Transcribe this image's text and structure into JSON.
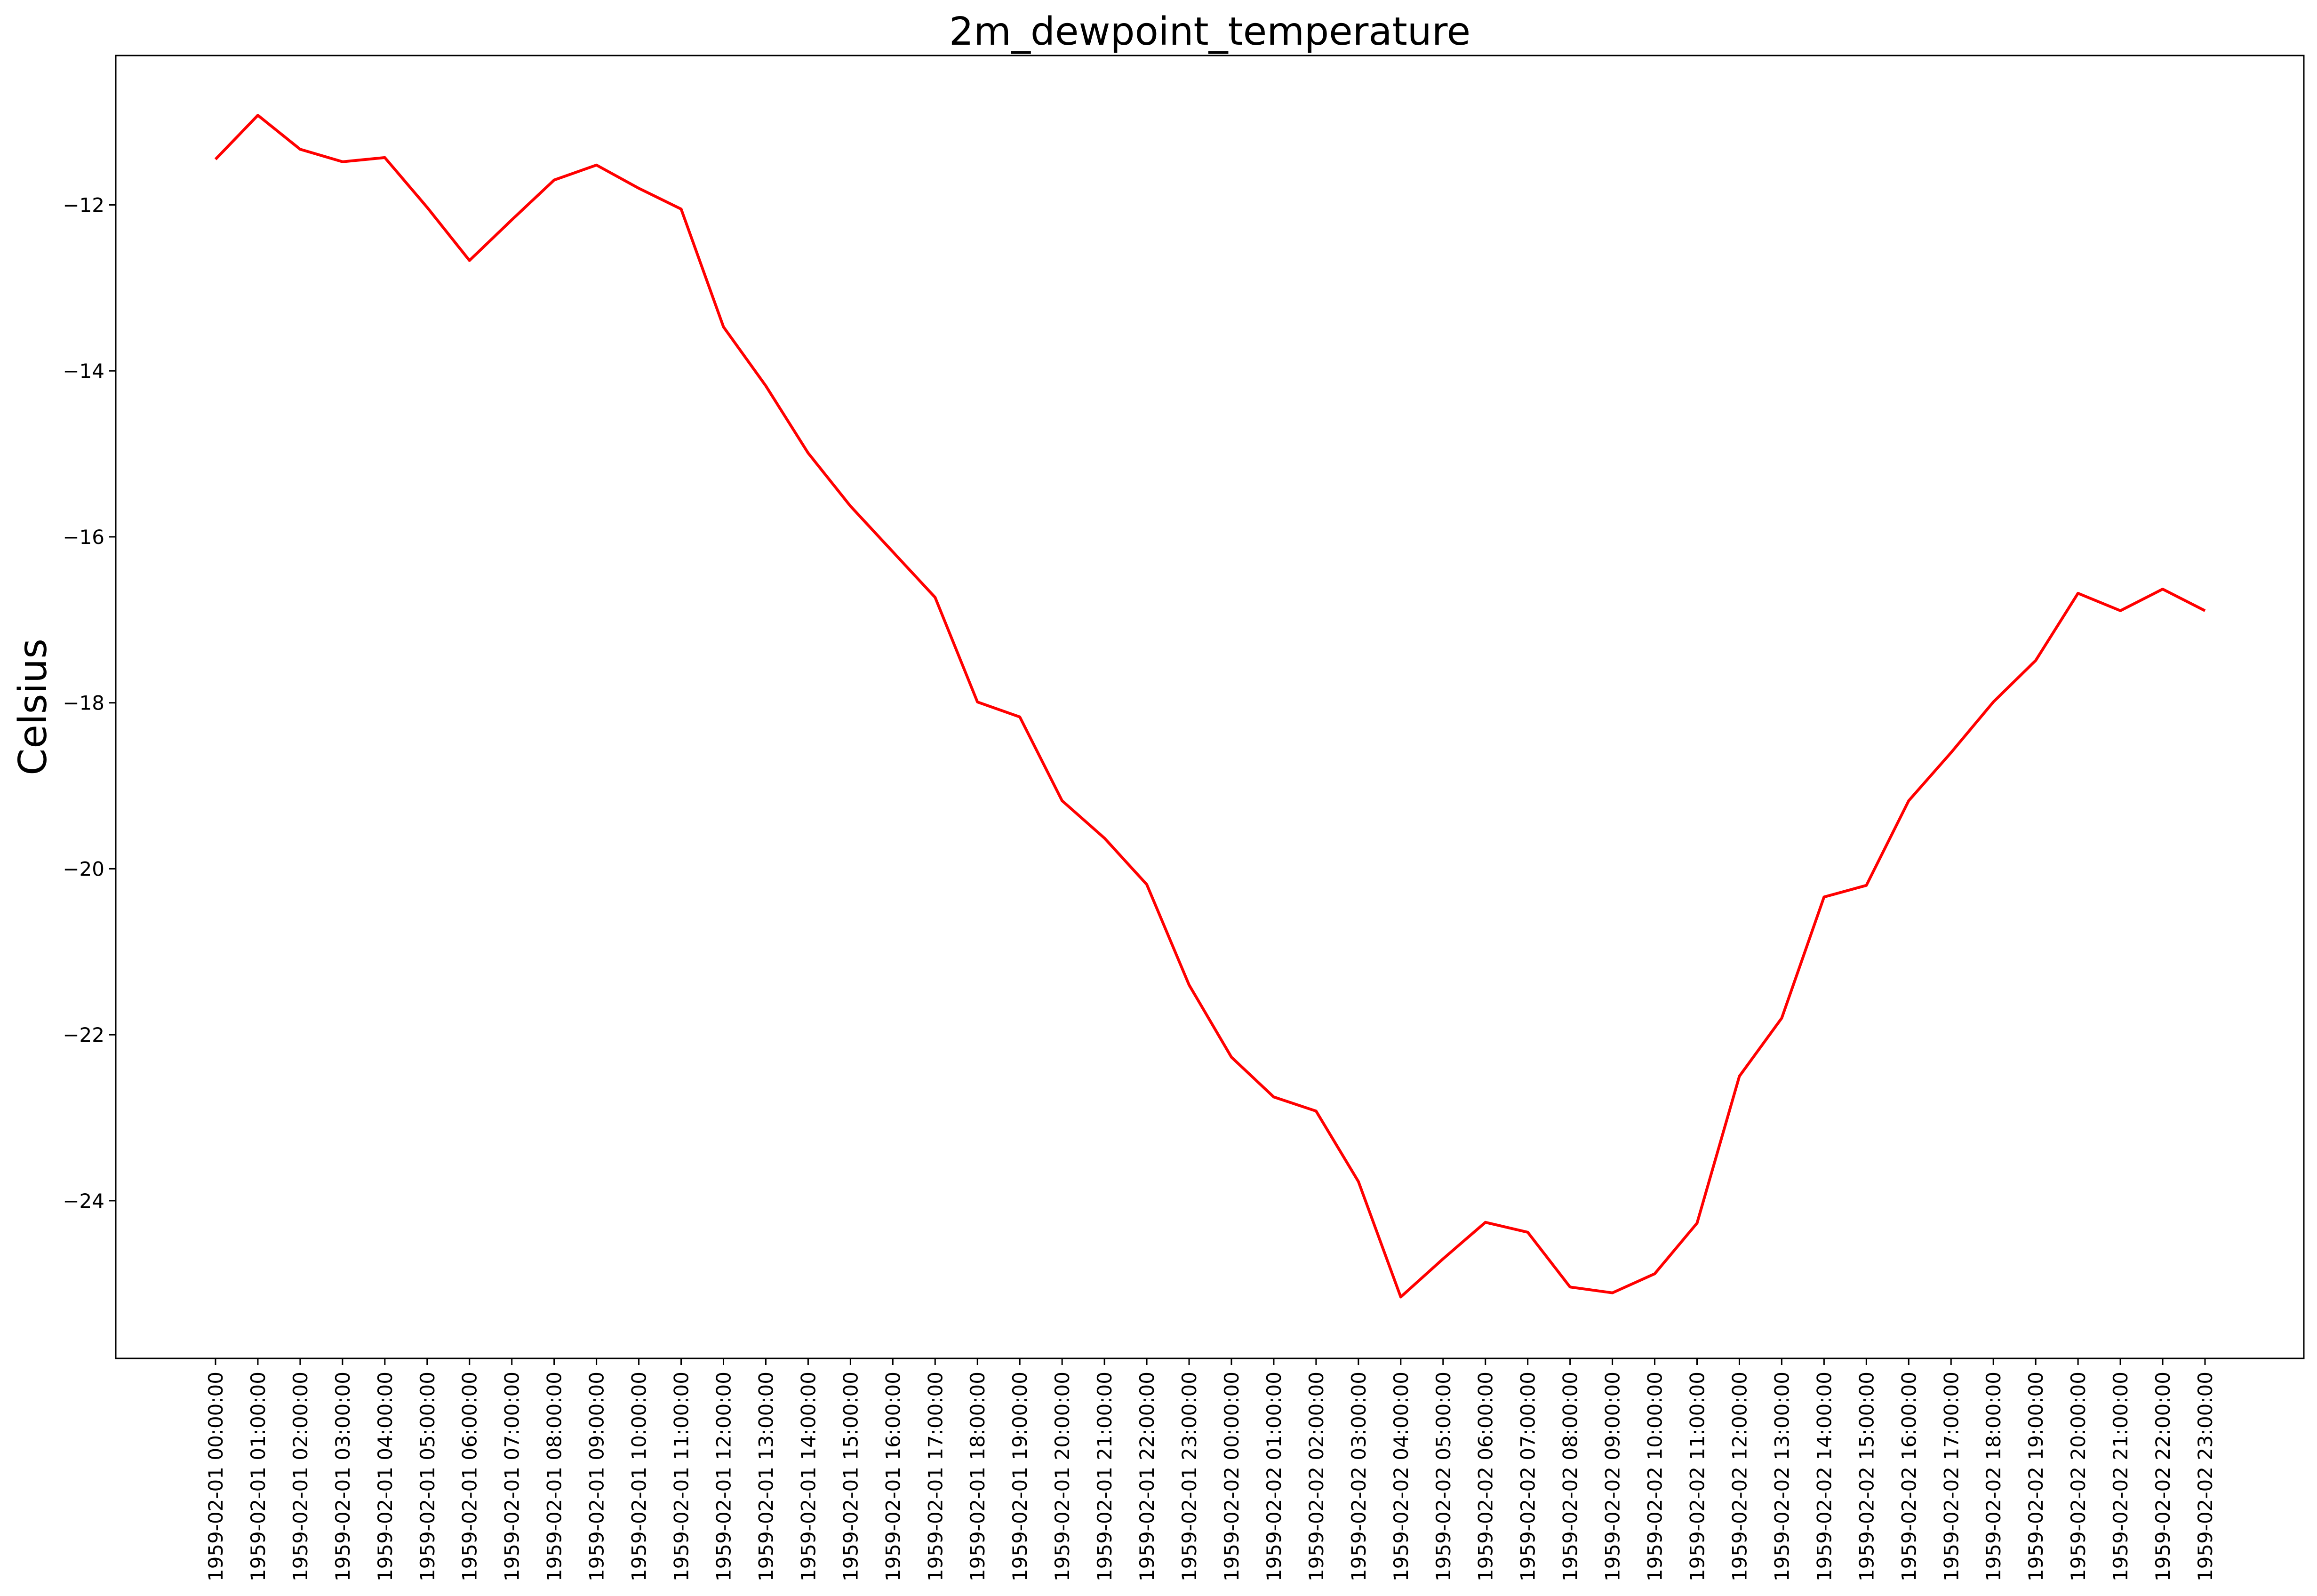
{
  "chart_data": {
    "type": "line",
    "title": "2m_dewpoint_temperature",
    "xlabel": "",
    "ylabel": "Celsius",
    "grid": false,
    "line_color": "#ff0000",
    "ylim": [
      -25.9,
      -10.2
    ],
    "yticks": [
      -12,
      -14,
      -16,
      -18,
      -20,
      -22,
      -24
    ],
    "x": [
      "1959-02-01 00:00:00",
      "1959-02-01 01:00:00",
      "1959-02-01 02:00:00",
      "1959-02-01 03:00:00",
      "1959-02-01 04:00:00",
      "1959-02-01 05:00:00",
      "1959-02-01 06:00:00",
      "1959-02-01 07:00:00",
      "1959-02-01 08:00:00",
      "1959-02-01 09:00:00",
      "1959-02-01 10:00:00",
      "1959-02-01 11:00:00",
      "1959-02-01 12:00:00",
      "1959-02-01 13:00:00",
      "1959-02-01 14:00:00",
      "1959-02-01 15:00:00",
      "1959-02-01 16:00:00",
      "1959-02-01 17:00:00",
      "1959-02-01 18:00:00",
      "1959-02-01 19:00:00",
      "1959-02-01 20:00:00",
      "1959-02-01 21:00:00",
      "1959-02-01 22:00:00",
      "1959-02-01 23:00:00",
      "1959-02-02 00:00:00",
      "1959-02-02 01:00:00",
      "1959-02-02 02:00:00",
      "1959-02-02 03:00:00",
      "1959-02-02 04:00:00",
      "1959-02-02 05:00:00",
      "1959-02-02 06:00:00",
      "1959-02-02 07:00:00",
      "1959-02-02 08:00:00",
      "1959-02-02 09:00:00",
      "1959-02-02 10:00:00",
      "1959-02-02 11:00:00",
      "1959-02-02 12:00:00",
      "1959-02-02 13:00:00",
      "1959-02-02 14:00:00",
      "1959-02-02 15:00:00",
      "1959-02-02 16:00:00",
      "1959-02-02 17:00:00",
      "1959-02-02 18:00:00",
      "1959-02-02 19:00:00",
      "1959-02-02 20:00:00",
      "1959-02-02 21:00:00",
      "1959-02-02 22:00:00",
      "1959-02-02 23:00:00"
    ],
    "y": [
      -11.45,
      -10.92,
      -11.33,
      -11.48,
      -11.43,
      -12.03,
      -12.67,
      -12.18,
      -11.7,
      -11.52,
      -11.8,
      -12.05,
      -13.47,
      -14.18,
      -14.99,
      -15.63,
      -16.18,
      -16.73,
      -17.99,
      -18.17,
      -19.18,
      -19.63,
      -20.19,
      -21.4,
      -22.27,
      -22.75,
      -22.92,
      -23.77,
      -25.16,
      -24.7,
      -24.26,
      -24.38,
      -25.04,
      -25.11,
      -24.88,
      -24.27,
      -22.5,
      -21.8,
      -20.34,
      -20.2,
      -19.18,
      -18.6,
      -17.99,
      -17.49,
      -16.68,
      -16.89,
      -16.63,
      -16.89
    ]
  }
}
